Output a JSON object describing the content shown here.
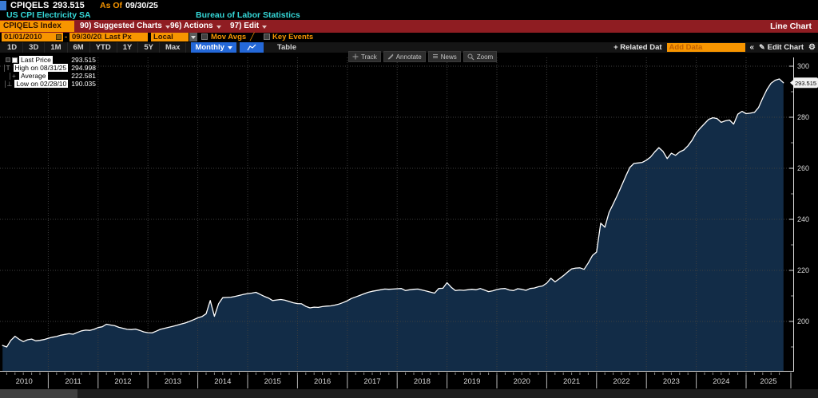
{
  "header": {
    "ticker": "CPIQELS",
    "last_value": "293.515",
    "as_of_label": "As Of",
    "as_of_date": "09/30/25",
    "security_name": "US CPI Electricity SA",
    "source": "Bureau of Labor Statistics"
  },
  "menubar": {
    "ticker_box": "CPIQELS Index",
    "items": [
      {
        "label": "90) Suggested Charts"
      },
      {
        "label": "96) Actions"
      },
      {
        "label": "97) Edit"
      }
    ],
    "right_label": "Line Chart"
  },
  "settings_bar": {
    "date_from": "01/01/2010",
    "separator": "-",
    "date_to": "09/30/2025",
    "px_type": "Last Px",
    "currency": "Local CCY",
    "mov_avgs_label": "Mov Avgs",
    "key_events_label": "Key Events"
  },
  "period_bar": {
    "periods": [
      "1D",
      "3D",
      "1M",
      "6M",
      "YTD",
      "1Y",
      "5Y",
      "Max"
    ],
    "frequency": "Monthly",
    "table_label": "Table",
    "related_data_label": "+ Related Dat",
    "add_data_placeholder": "Add Data",
    "collapse_label": "«",
    "edit_chart_label": "Edit Chart"
  },
  "icons": {
    "gear": "⚙",
    "pencil": "✎",
    "slash": "╱"
  },
  "chart_toolbar": {
    "buttons": [
      "Track",
      "Annotate",
      "News",
      "Zoom"
    ]
  },
  "legend": {
    "rows": [
      {
        "marker": "",
        "label": "Last Price",
        "value": "293.515"
      },
      {
        "marker": "T",
        "label": "High on 08/31/25",
        "value": "294.998"
      },
      {
        "marker": "+",
        "label": "Average",
        "value": "222.581"
      },
      {
        "marker": "⊥",
        "label": "Low on 02/28/10",
        "value": "190.035"
      }
    ]
  },
  "price_badge": "293.515",
  "colors": {
    "amber": "#f79500",
    "cyan": "#35d8d8",
    "toolbar_red": "#8f1d22",
    "freq_blue": "#2468d8",
    "area_fill": "#122c47",
    "line": "#ffffff",
    "grid": "#3f3f3f",
    "axis": "#d9d9d9",
    "tick_label": "#d8d8d8"
  },
  "chart_data": {
    "type": "line",
    "title": "US CPI Electricity SA (CPIQELS Index)",
    "frequency": "monthly",
    "x_start": "2010-01",
    "x_end": "2025-09",
    "x_tick_years": [
      2010,
      2011,
      2012,
      2013,
      2014,
      2015,
      2016,
      2017,
      2018,
      2019,
      2020,
      2021,
      2022,
      2023,
      2024,
      2025
    ],
    "y_ticks": [
      200,
      220,
      240,
      260,
      280,
      300
    ],
    "y_minor_ticks": [
      190,
      210,
      230,
      250,
      270,
      290
    ],
    "ylim_visible": [
      180.6,
      302
    ],
    "grid": true,
    "legend_position": "top-left",
    "stats": {
      "last": 293.515,
      "high": 294.998,
      "high_date": "08/31/25",
      "average": 222.581,
      "low": 190.035,
      "low_date": "02/28/10"
    },
    "series": [
      {
        "name": "Last Price",
        "values": [
          190.6,
          190.0,
          192.6,
          194.2,
          193.0,
          192.1,
          192.8,
          193.1,
          192.4,
          192.6,
          192.9,
          193.4,
          193.8,
          194.1,
          194.6,
          194.9,
          195.2,
          195.0,
          195.7,
          196.3,
          196.6,
          196.5,
          196.9,
          197.6,
          197.9,
          198.9,
          198.6,
          198.3,
          197.7,
          197.3,
          196.9,
          196.8,
          197.0,
          196.5,
          195.9,
          195.6,
          195.5,
          196.2,
          196.9,
          197.3,
          197.7,
          198.1,
          198.5,
          199.0,
          199.4,
          200.0,
          200.7,
          201.4,
          201.9,
          203.0,
          208.2,
          202.0,
          206.9,
          209.3,
          209.4,
          209.5,
          209.8,
          210.2,
          210.6,
          210.9,
          211.1,
          211.4,
          210.6,
          209.8,
          209.2,
          208.2,
          208.4,
          208.6,
          208.3,
          207.8,
          207.3,
          207.0,
          206.9,
          205.9,
          205.3,
          205.6,
          205.5,
          205.8,
          206.0,
          206.1,
          206.4,
          206.8,
          207.4,
          208.1,
          209.0,
          209.6,
          210.2,
          210.8,
          211.4,
          211.8,
          212.1,
          212.4,
          212.7,
          212.6,
          212.7,
          212.8,
          212.9,
          212.1,
          212.4,
          212.6,
          212.7,
          212.3,
          211.9,
          211.5,
          211.1,
          212.9,
          213.0,
          215.2,
          213.4,
          212.1,
          212.3,
          212.2,
          212.4,
          212.6,
          212.4,
          212.9,
          212.3,
          211.7,
          212.0,
          212.5,
          212.8,
          212.9,
          212.3,
          212.1,
          212.8,
          212.6,
          212.2,
          212.9,
          213.1,
          213.6,
          213.9,
          215.0,
          216.9,
          215.5,
          216.7,
          217.9,
          219.3,
          220.6,
          220.9,
          221.0,
          220.4,
          222.9,
          225.8,
          227.2,
          238.5,
          236.9,
          242.7,
          246.0,
          249.4,
          253.1,
          256.8,
          260.3,
          261.9,
          262.1,
          262.3,
          263.2,
          264.4,
          266.4,
          268.1,
          266.6,
          263.8,
          265.9,
          265.1,
          266.4,
          267.2,
          268.8,
          271.0,
          273.9,
          275.8,
          277.5,
          279.2,
          279.8,
          279.5,
          278.0,
          278.6,
          278.9,
          277.3,
          281.2,
          282.3,
          281.4,
          281.6,
          281.9,
          283.8,
          287.5,
          290.8,
          293.3,
          294.5,
          294.998,
          293.515
        ]
      }
    ]
  }
}
